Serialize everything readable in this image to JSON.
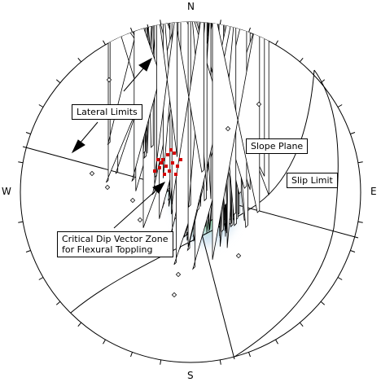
{
  "directions": {
    "north": "N",
    "south": "S",
    "east": "E",
    "west": "W"
  },
  "labels": {
    "lateral_limits": "Lateral Limits",
    "slope_plane": "Slope Plane",
    "slip_limit": "Slip Limit",
    "critical_zone_line1": "Critical Dip Vector Zone",
    "critical_zone_line2": "for Flexural Toppling"
  },
  "colors": {
    "critical_zone_fill": "#e8282a",
    "critical_pole": "#d40000",
    "contour_low": "#cfe3f2",
    "contour_mid": "#9de3b4",
    "contour_green": "#3fd86a",
    "contour_yellow": "#f2e51a",
    "contour_orange": "#f2922a",
    "pole_marker": "#000000"
  }
}
